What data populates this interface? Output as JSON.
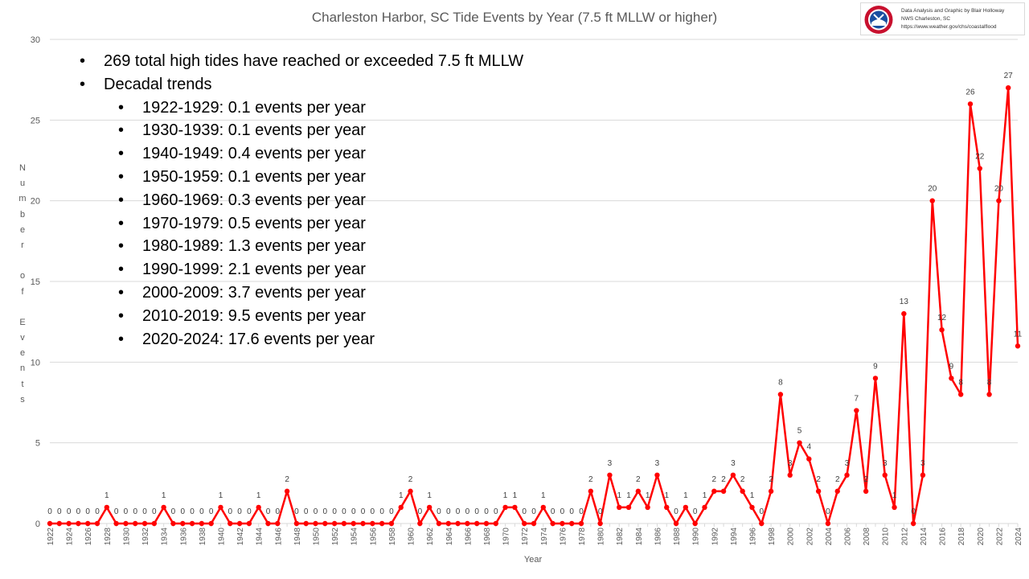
{
  "header": {
    "title": "Charleston Harbor, SC Tide Events by Year (7.5 ft MLLW or higher)"
  },
  "credit": {
    "line1": "Data Analysis and Graphic by Blair Holloway",
    "line2": "NWS Charleston, SC",
    "line3": "https://www.weather.gov/chs/coastalflood",
    "logo_icon": "noaa-weather-service-logo"
  },
  "notes": {
    "total": "269 total high tides have reached or exceeded 7.5 ft MLLW",
    "heading": "Decadal trends",
    "decades": [
      "1922-1929: 0.1 events per year",
      "1930-1939: 0.1 events per year",
      "1940-1949: 0.4 events per year",
      "1950-1959: 0.1 events per year",
      "1960-1969: 0.3 events per year",
      "1970-1979: 0.5 events per year",
      "1980-1989: 1.3 events per year",
      "1990-1999: 2.1 events per year",
      "2000-2009: 3.7 events per year",
      "2010-2019: 9.5 events per year",
      "2020-2024: 17.6 events per year"
    ]
  },
  "chart_data": {
    "type": "line",
    "title": "Charleston Harbor, SC Tide Events by Year (7.5 ft MLLW or higher)",
    "xlabel": "Year",
    "ylabel": "Number of Events",
    "ylim": [
      0,
      30
    ],
    "yticks": [
      0,
      5,
      10,
      15,
      20,
      25,
      30
    ],
    "grid": true,
    "color": "#ff0000",
    "x": [
      1922,
      1923,
      1924,
      1925,
      1926,
      1927,
      1928,
      1929,
      1930,
      1931,
      1932,
      1933,
      1934,
      1935,
      1936,
      1937,
      1938,
      1939,
      1940,
      1941,
      1942,
      1943,
      1944,
      1945,
      1946,
      1947,
      1948,
      1949,
      1950,
      1951,
      1952,
      1953,
      1954,
      1955,
      1956,
      1957,
      1958,
      1959,
      1960,
      1961,
      1962,
      1963,
      1964,
      1965,
      1966,
      1967,
      1968,
      1969,
      1970,
      1971,
      1972,
      1973,
      1974,
      1975,
      1976,
      1977,
      1978,
      1979,
      1980,
      1981,
      1982,
      1983,
      1984,
      1985,
      1986,
      1987,
      1988,
      1989,
      1990,
      1991,
      1992,
      1993,
      1994,
      1995,
      1996,
      1997,
      1998,
      1999,
      2000,
      2001,
      2002,
      2003,
      2004,
      2005,
      2006,
      2007,
      2008,
      2009,
      2010,
      2011,
      2012,
      2013,
      2014,
      2015,
      2016,
      2017,
      2018,
      2019,
      2020,
      2021,
      2022,
      2023,
      2024
    ],
    "values": [
      0,
      0,
      0,
      0,
      0,
      0,
      1,
      0,
      0,
      0,
      0,
      0,
      1,
      0,
      0,
      0,
      0,
      0,
      1,
      0,
      0,
      0,
      1,
      0,
      0,
      2,
      0,
      0,
      0,
      0,
      0,
      0,
      0,
      0,
      0,
      0,
      0,
      1,
      2,
      0,
      1,
      0,
      0,
      0,
      0,
      0,
      0,
      0,
      1,
      1,
      0,
      0,
      1,
      0,
      0,
      0,
      0,
      2,
      0,
      3,
      1,
      1,
      2,
      1,
      3,
      1,
      0,
      1,
      0,
      1,
      2,
      2,
      3,
      2,
      1,
      0,
      2,
      8,
      3,
      5,
      4,
      2,
      0,
      2,
      3,
      7,
      2,
      9,
      3,
      1,
      13,
      0,
      3,
      20,
      12,
      9,
      8,
      26,
      22,
      8,
      20,
      27,
      11
    ]
  }
}
